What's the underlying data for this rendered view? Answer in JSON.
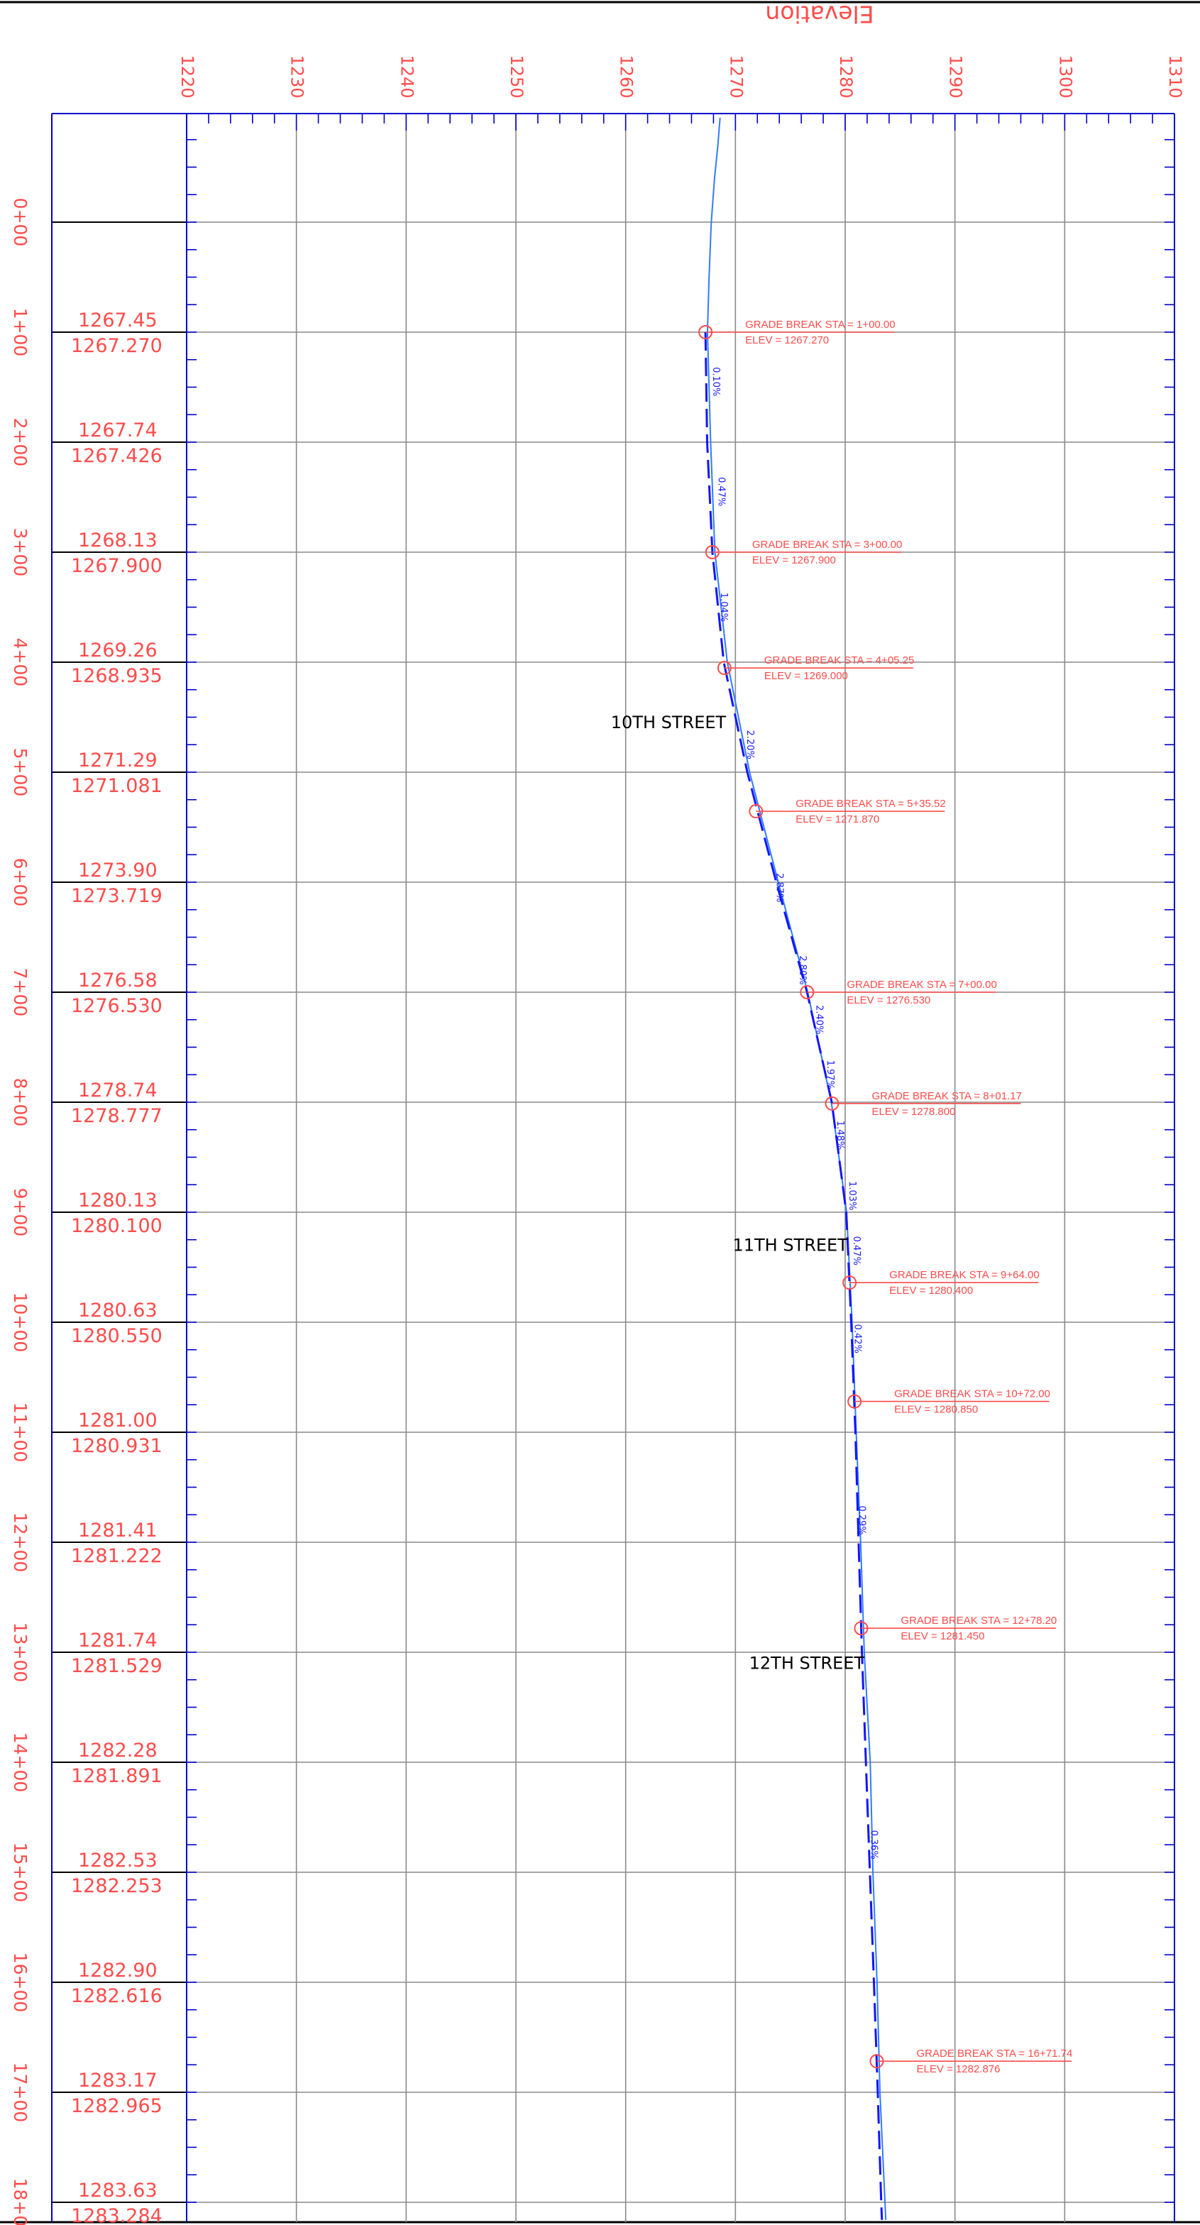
{
  "chart_data": {
    "type": "profile",
    "title": "Elevation",
    "elevation_ticks": [
      "1220",
      "1230",
      "1240",
      "1250",
      "1260",
      "1270",
      "1280",
      "1290",
      "1300",
      "1310"
    ],
    "elevation_range": [
      1220,
      1310
    ],
    "station_range": [
      0,
      18.16
    ],
    "stations": [
      {
        "station": 0,
        "label": "0+00",
        "existing": "",
        "proposed": ""
      },
      {
        "station": 1,
        "label": "1+00",
        "existing": "1267.45",
        "proposed": "1267.270"
      },
      {
        "station": 2,
        "label": "2+00",
        "existing": "1267.74",
        "proposed": "1267.426"
      },
      {
        "station": 3,
        "label": "3+00",
        "existing": "1268.13",
        "proposed": "1267.900"
      },
      {
        "station": 4,
        "label": "4+00",
        "existing": "1269.26",
        "proposed": "1268.935"
      },
      {
        "station": 5,
        "label": "5+00",
        "existing": "1271.29",
        "proposed": "1271.081"
      },
      {
        "station": 6,
        "label": "6+00",
        "existing": "1273.90",
        "proposed": "1273.719"
      },
      {
        "station": 7,
        "label": "7+00",
        "existing": "1276.58",
        "proposed": "1276.530"
      },
      {
        "station": 8,
        "label": "8+00",
        "existing": "1278.74",
        "proposed": "1278.777"
      },
      {
        "station": 9,
        "label": "9+00",
        "existing": "1280.13",
        "proposed": "1280.100"
      },
      {
        "station": 10,
        "label": "10+00",
        "existing": "1280.63",
        "proposed": "1280.550"
      },
      {
        "station": 11,
        "label": "11+00",
        "existing": "1281.00",
        "proposed": "1280.931"
      },
      {
        "station": 12,
        "label": "12+00",
        "existing": "1281.41",
        "proposed": "1281.222"
      },
      {
        "station": 13,
        "label": "13+00",
        "existing": "1281.74",
        "proposed": "1281.529"
      },
      {
        "station": 14,
        "label": "14+00",
        "existing": "1282.28",
        "proposed": "1281.891"
      },
      {
        "station": 15,
        "label": "15+00",
        "existing": "1282.53",
        "proposed": "1282.253"
      },
      {
        "station": 16,
        "label": "16+00",
        "existing": "1282.90",
        "proposed": "1282.616"
      },
      {
        "station": 17,
        "label": "17+00",
        "existing": "1283.17",
        "proposed": "1282.965"
      },
      {
        "station": 18,
        "label": "18+0",
        "existing": "1283.63",
        "proposed": "1283.284"
      }
    ],
    "existing_ground": [
      {
        "station": -0.95,
        "elevation": 1268.6
      },
      {
        "station": -0.7,
        "elevation": 1268.4
      },
      {
        "station": -0.4,
        "elevation": 1268.1
      },
      {
        "station": 0,
        "elevation": 1267.8
      },
      {
        "station": 0.5,
        "elevation": 1267.6
      },
      {
        "station": 1,
        "elevation": 1267.45
      },
      {
        "station": 2,
        "elevation": 1267.74
      },
      {
        "station": 3,
        "elevation": 1268.13
      },
      {
        "station": 4,
        "elevation": 1269.26
      },
      {
        "station": 5,
        "elevation": 1271.29
      },
      {
        "station": 6,
        "elevation": 1273.9
      },
      {
        "station": 7,
        "elevation": 1276.58
      },
      {
        "station": 8,
        "elevation": 1278.74
      },
      {
        "station": 9,
        "elevation": 1280.13
      },
      {
        "station": 10,
        "elevation": 1280.63
      },
      {
        "station": 11,
        "elevation": 1281.0
      },
      {
        "station": 12,
        "elevation": 1281.41
      },
      {
        "station": 13,
        "elevation": 1281.74
      },
      {
        "station": 14,
        "elevation": 1282.28
      },
      {
        "station": 15,
        "elevation": 1282.53
      },
      {
        "station": 16,
        "elevation": 1282.9
      },
      {
        "station": 17,
        "elevation": 1283.17
      },
      {
        "station": 18,
        "elevation": 1283.63
      },
      {
        "station": 18.16,
        "elevation": 1283.7
      }
    ],
    "proposed_profile": [
      {
        "station": 1,
        "elevation": 1267.27
      },
      {
        "station": 2,
        "elevation": 1267.426
      },
      {
        "station": 3,
        "elevation": 1267.9
      },
      {
        "station": 4,
        "elevation": 1268.935
      },
      {
        "station": 5,
        "elevation": 1271.081
      },
      {
        "station": 6,
        "elevation": 1273.719
      },
      {
        "station": 7,
        "elevation": 1276.53
      },
      {
        "station": 8,
        "elevation": 1278.777
      },
      {
        "station": 9,
        "elevation": 1280.1
      },
      {
        "station": 10,
        "elevation": 1280.55
      },
      {
        "station": 11,
        "elevation": 1280.931
      },
      {
        "station": 12,
        "elevation": 1281.222
      },
      {
        "station": 13,
        "elevation": 1281.529
      },
      {
        "station": 14,
        "elevation": 1281.891
      },
      {
        "station": 15,
        "elevation": 1282.253
      },
      {
        "station": 16,
        "elevation": 1282.616
      },
      {
        "station": 17,
        "elevation": 1282.965
      },
      {
        "station": 18,
        "elevation": 1283.284
      },
      {
        "station": 18.16,
        "elevation": 1283.35
      }
    ],
    "grade_breaks": [
      {
        "station": 1.0,
        "elevation": 1267.27,
        "label": "GRADE BREAK STA = 1+00.00",
        "elev_label": "ELEV =  1267.270"
      },
      {
        "station": 3.0,
        "elevation": 1267.9,
        "label": "GRADE BREAK STA = 3+00.00",
        "elev_label": "ELEV =  1267.900"
      },
      {
        "station": 4.0525,
        "elevation": 1269.0,
        "label": "GRADE BREAK STA = 4+05.25",
        "elev_label": "ELEV =  1269.000"
      },
      {
        "station": 5.3552,
        "elevation": 1271.87,
        "label": "GRADE BREAK STA = 5+35.52",
        "elev_label": "ELEV =  1271.870"
      },
      {
        "station": 7.0,
        "elevation": 1276.53,
        "label": "GRADE BREAK STA = 7+00.00",
        "elev_label": "ELEV =  1276.530"
      },
      {
        "station": 8.0117,
        "elevation": 1278.8,
        "label": "GRADE BREAK STA = 8+01.17",
        "elev_label": "ELEV =  1278.800"
      },
      {
        "station": 9.64,
        "elevation": 1280.4,
        "label": "GRADE BREAK STA = 9+64.00",
        "elev_label": "ELEV =  1280.400"
      },
      {
        "station": 10.72,
        "elevation": 1280.85,
        "label": "GRADE BREAK STA = 10+72.00",
        "elev_label": "ELEV =  1280.850"
      },
      {
        "station": 12.782,
        "elevation": 1281.45,
        "label": "GRADE BREAK STA = 12+78.20",
        "elev_label": "ELEV =  1281.450"
      },
      {
        "station": 16.7174,
        "elevation": 1282.876,
        "label": "GRADE BREAK STA = 16+71.74",
        "elev_label": "ELEV =  1282.876"
      }
    ],
    "slopes": [
      {
        "text": "0.10%",
        "station": 1.45,
        "elevation": 1268.2
      },
      {
        "text": "0.47%",
        "station": 2.45,
        "elevation": 1268.7
      },
      {
        "text": "1.04%",
        "station": 3.5,
        "elevation": 1268.9
      },
      {
        "text": "2.20%",
        "station": 4.75,
        "elevation": 1271.3
      },
      {
        "text": "2.87%",
        "station": 6.05,
        "elevation": 1274.0
      },
      {
        "text": "2.80%",
        "station": 6.8,
        "elevation": 1276.1
      },
      {
        "text": "2.40%",
        "station": 7.25,
        "elevation": 1277.6
      },
      {
        "text": "1.97%",
        "station": 7.75,
        "elevation": 1278.6
      },
      {
        "text": "1.48%",
        "station": 8.3,
        "elevation": 1279.5
      },
      {
        "text": "1.03%",
        "station": 8.85,
        "elevation": 1280.6
      },
      {
        "text": "0.47%",
        "station": 9.35,
        "elevation": 1281.0
      },
      {
        "text": "0.42%",
        "station": 10.15,
        "elevation": 1281.1
      },
      {
        "text": "0.29%",
        "station": 11.8,
        "elevation": 1281.5
      },
      {
        "text": "0.36%",
        "station": 14.75,
        "elevation": 1282.6
      }
    ],
    "street_labels": [
      {
        "text": "10TH STREET",
        "station": 4.6,
        "elevation": 1263.9
      },
      {
        "text": "11TH STREET",
        "station": 9.35,
        "elevation": 1275.0
      },
      {
        "text": "12TH STREET",
        "station": 13.15,
        "elevation": 1276.5
      }
    ]
  }
}
